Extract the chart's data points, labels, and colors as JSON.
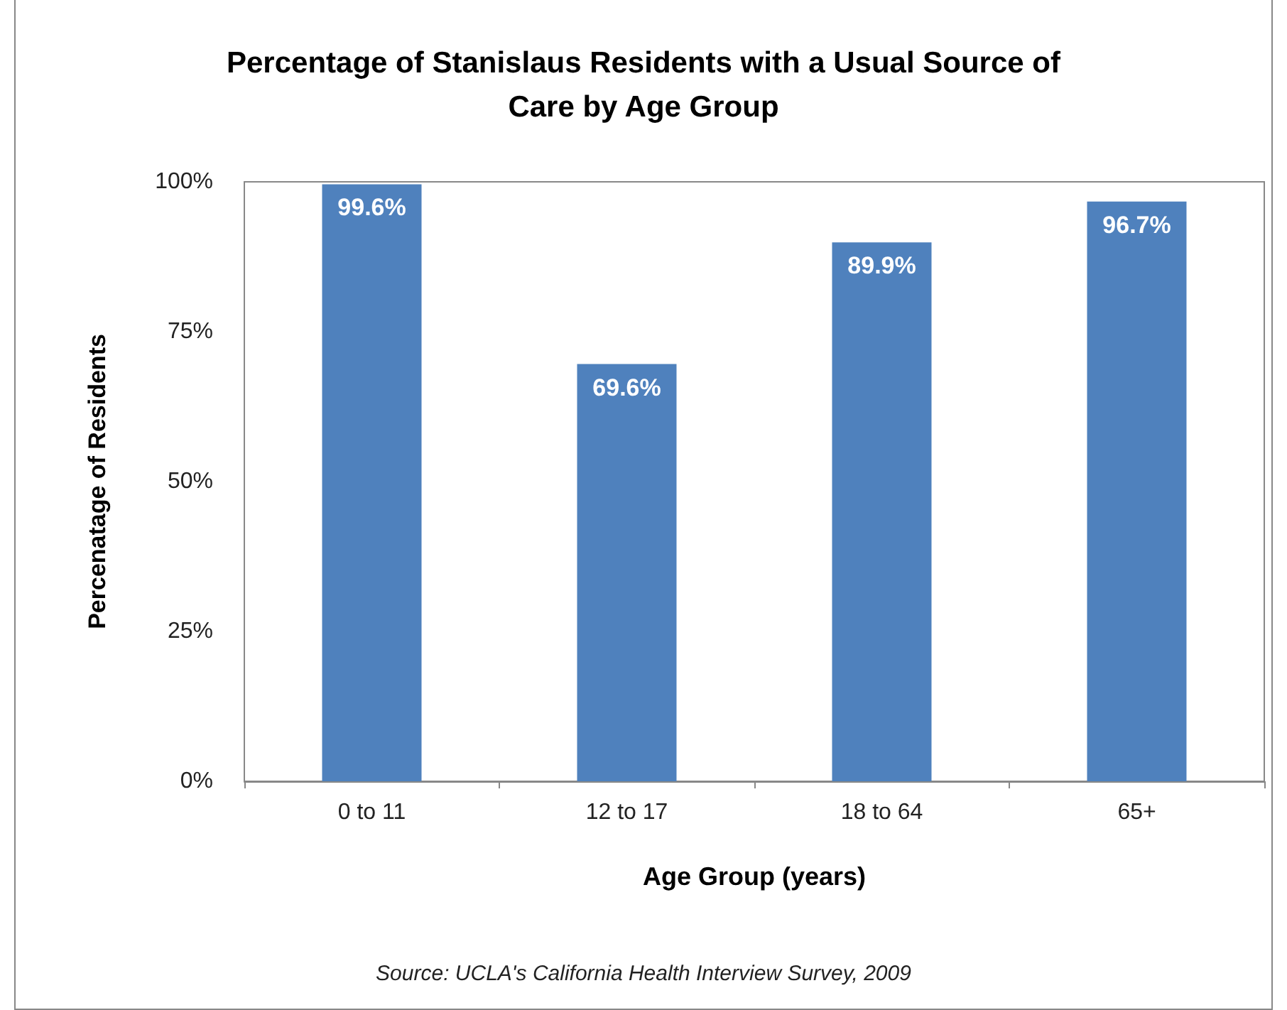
{
  "chart_data": {
    "type": "bar",
    "title": "Percentage of Stanislaus Residents with a Usual Source of\nCare by Age Group",
    "xlabel": "Age Group (years)",
    "ylabel": "Percenatage of Residents",
    "categories": [
      "0 to 11",
      "12 to 17",
      "18 to 64",
      "65+"
    ],
    "values": [
      99.6,
      69.6,
      89.9,
      96.7
    ],
    "value_labels": [
      "99.6%",
      "69.6%",
      "89.9%",
      "96.7%"
    ],
    "color": "#4f81bd",
    "ylim": [
      0,
      100
    ],
    "yticks": [
      {
        "value": 0,
        "label": "0%"
      },
      {
        "value": 25,
        "label": "25%"
      },
      {
        "value": 50,
        "label": "50%"
      },
      {
        "value": 75,
        "label": "75%"
      },
      {
        "value": 100,
        "label": "100%"
      }
    ],
    "grid": false,
    "annotations": [
      "Source: UCLA's California Health Interview Survey, 2009"
    ]
  }
}
